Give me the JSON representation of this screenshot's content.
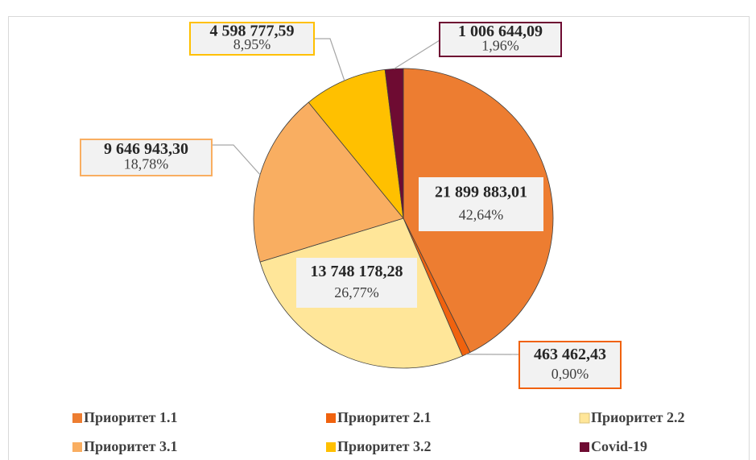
{
  "chart_data": {
    "type": "pie",
    "categories": [
      "Приоритет 1.1",
      "Приоритет 2.1",
      "Приоритет 2.2",
      "Приоритет 3.1",
      "Приоритет 3.2",
      "Covid-19"
    ],
    "values": [
      21899883.01,
      463462.43,
      13748178.28,
      9646943.3,
      4598777.59,
      1006644.09
    ],
    "value_labels": [
      "21 899 883,01",
      "463 462,43",
      "13 748 178,28",
      "9 646 943,30",
      "4 598 777,59",
      "1 006 644,09"
    ],
    "percents": [
      42.64,
      0.9,
      26.77,
      18.78,
      8.95,
      1.96
    ],
    "percent_labels": [
      "42,64%",
      "0,90%",
      "26,77%",
      "18,78%",
      "8,95%",
      "1,96%"
    ],
    "colors": [
      "#ED7D31",
      "#F0620E",
      "#FFE699",
      "#F9AE61",
      "#FFC000",
      "#6E0B32"
    ],
    "legend": "bottom"
  }
}
